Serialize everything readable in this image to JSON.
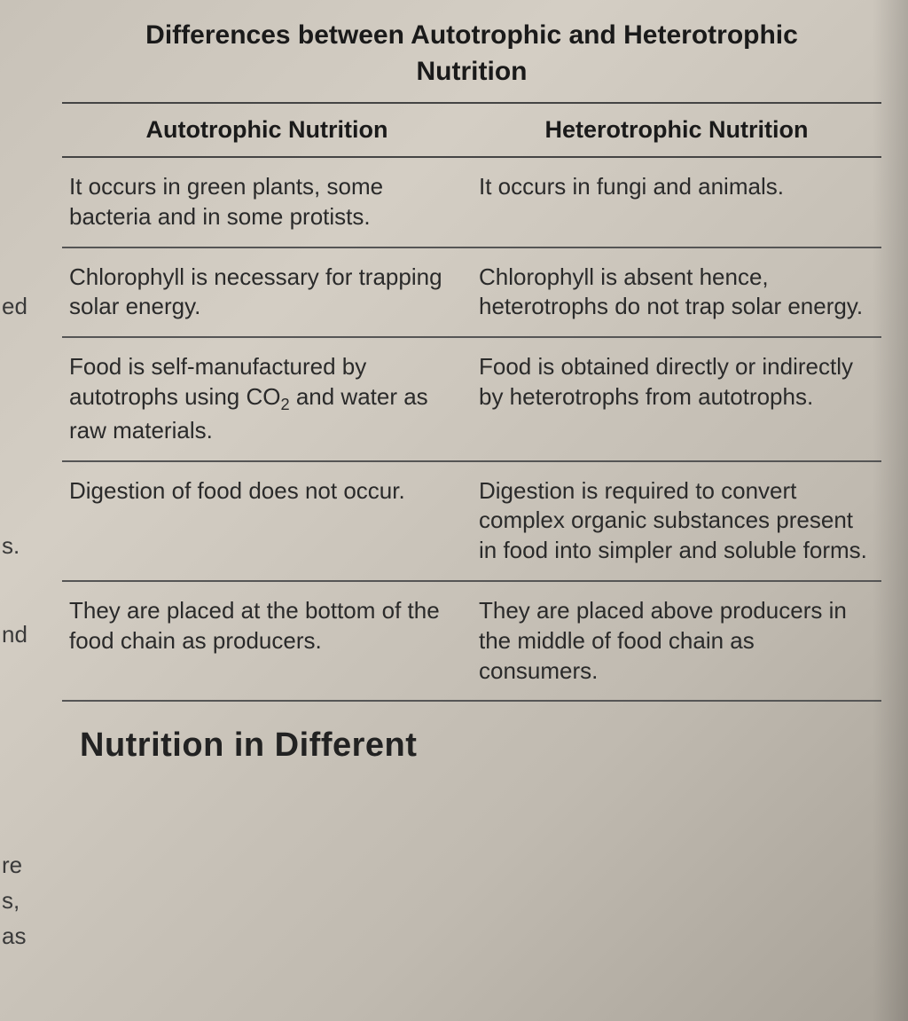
{
  "title": "Differences between Autotrophic and Heterotrophic Nutrition",
  "edge_fragments": {
    "e1": "ed",
    "e2": "s.",
    "e3": "nd",
    "e4": "re",
    "e5": "s,",
    "e6": "as"
  },
  "table": {
    "columns": [
      "Autotrophic Nutrition",
      "Heterotrophic Nutrition"
    ],
    "rows": [
      {
        "left": "It occurs in green plants, some bacteria and in some protists.",
        "right": "It occurs in fungi and animals."
      },
      {
        "left": "Chlorophyll is necessary for trapping solar energy.",
        "right": "Chlorophyll is absent hence, heterotrophs do not trap solar energy."
      },
      {
        "left_html": "Food is self-manufactured by autotrophs using CO<sub>2</sub> and water as raw materials.",
        "right": "Food is obtained directly or indirectly by heterotrophs from autotrophs."
      },
      {
        "left": "Digestion of food does not occur.",
        "right": "Digestion is required to convert complex organic substances present in food into simpler and soluble forms."
      },
      {
        "left": "They are placed at the bottom of the food chain as producers.",
        "right": "They are placed above producers in the middle of food chain as consumers."
      }
    ],
    "styling": {
      "border_color": "#444444",
      "header_fontsize": 27,
      "cell_fontsize": 26,
      "title_fontsize": 30,
      "background_color": "#cbc5bb",
      "text_color": "#2a2a2a"
    }
  },
  "footer_partial": "Nutrition in Different",
  "edge_positions": {
    "e1": 330,
    "e2": 600,
    "e3": 700,
    "e4": 960,
    "e5": 1000,
    "e6": 1040
  }
}
